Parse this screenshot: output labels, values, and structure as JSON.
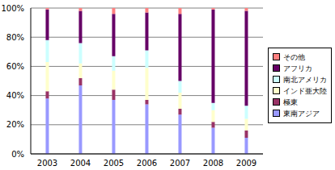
{
  "chart_data": {
    "type": "bar",
    "stacked": true,
    "categories": [
      "2003",
      "2004",
      "2005",
      "2006",
      "2007",
      "2008",
      "2009"
    ],
    "series": [
      {
        "name": "東南アジア",
        "color": "#9999ff",
        "values": [
          38,
          47,
          37,
          34,
          27,
          18,
          11
        ]
      },
      {
        "name": "極東",
        "color": "#993366",
        "values": [
          5,
          5,
          7,
          3,
          4,
          4,
          5
        ]
      },
      {
        "name": "インド亜大陸",
        "color": "#ffffcc",
        "values": [
          20,
          10,
          13,
          22,
          11,
          8,
          8
        ]
      },
      {
        "name": "南北アメリカ",
        "color": "#ccffff",
        "values": [
          15,
          14,
          10,
          12,
          8,
          5,
          9
        ]
      },
      {
        "name": "アフリカ",
        "color": "#660066",
        "values": [
          21,
          22,
          29,
          26,
          46,
          64,
          65
        ]
      },
      {
        "name": "その他",
        "color": "#ff8080",
        "values": [
          1,
          2,
          4,
          3,
          4,
          1,
          2
        ]
      }
    ],
    "ylim": [
      0,
      100
    ],
    "yticks": [
      {
        "value": 0,
        "label": "0%"
      },
      {
        "value": 20,
        "label": "20%"
      },
      {
        "value": 40,
        "label": "40%"
      },
      {
        "value": 60,
        "label": "60%"
      },
      {
        "value": 80,
        "label": "80%"
      },
      {
        "value": 100,
        "label": "100%"
      }
    ],
    "grid": true,
    "legend": "right"
  }
}
